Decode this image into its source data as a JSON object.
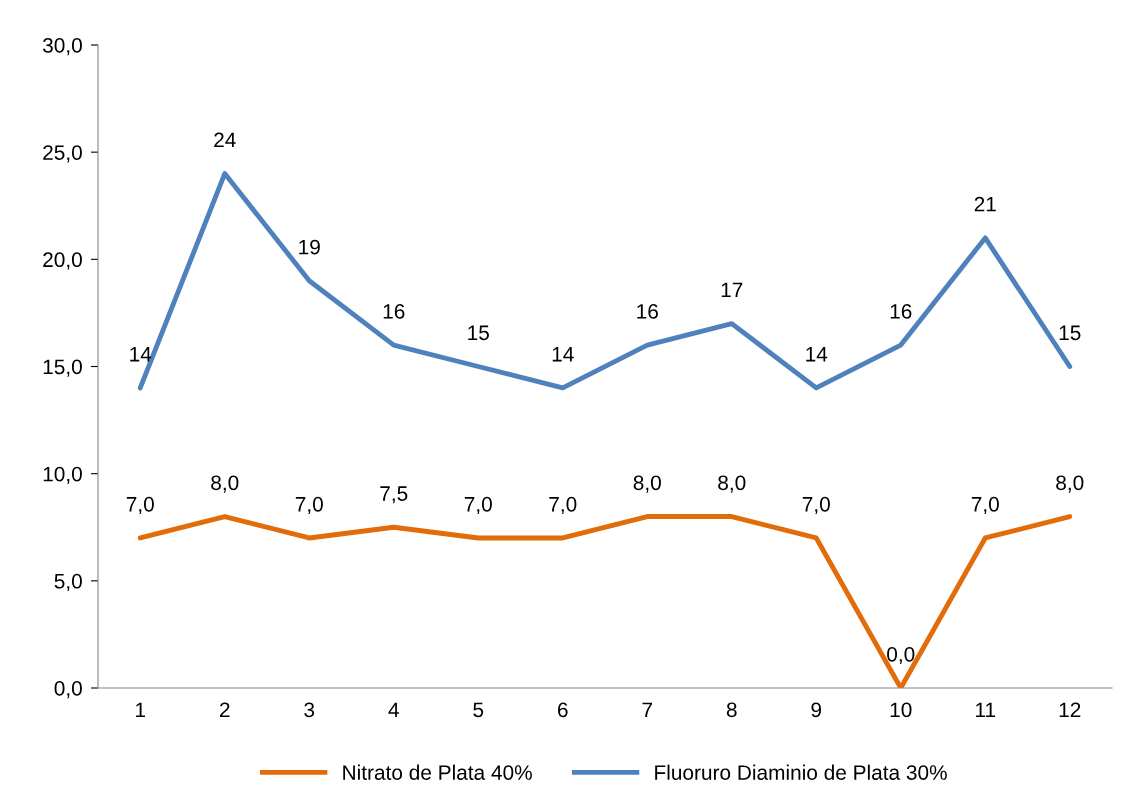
{
  "chart_data": {
    "type": "line",
    "categories": [
      "1",
      "2",
      "3",
      "4",
      "5",
      "6",
      "7",
      "8",
      "9",
      "10",
      "11",
      "12"
    ],
    "series": [
      {
        "name": "Nitrato de Plata 40%",
        "color": "#e36c0a",
        "values": [
          7.0,
          8.0,
          7.0,
          7.5,
          7.0,
          7.0,
          8.0,
          8.0,
          7.0,
          0.0,
          7.0,
          8.0
        ],
        "value_labels": [
          "7,0",
          "8,0",
          "7,0",
          "7,5",
          "7,0",
          "7,0",
          "8,0",
          "8,0",
          "7,0",
          "0,0",
          "7,0",
          "8,0"
        ]
      },
      {
        "name": "Fluoruro Diaminio de Plata 30%",
        "color": "#4f81bd",
        "values": [
          14,
          24,
          19,
          16,
          15,
          14,
          16,
          17,
          14,
          16,
          21,
          15
        ],
        "value_labels": [
          "14",
          "24",
          "19",
          "16",
          "15",
          "14",
          "16",
          "17",
          "14",
          "16",
          "21",
          "15"
        ]
      }
    ],
    "ylim": [
      0,
      30
    ],
    "yticks": [
      {
        "value": 0,
        "label": "0,0"
      },
      {
        "value": 5,
        "label": "5,0"
      },
      {
        "value": 10,
        "label": "10,0"
      },
      {
        "value": 15,
        "label": "15,0"
      },
      {
        "value": 20,
        "label": "20,0"
      },
      {
        "value": 25,
        "label": "25,0"
      },
      {
        "value": 30,
        "label": "30,0"
      }
    ],
    "grid": false,
    "legend": "bottom",
    "marker": "none",
    "line_style": "solid"
  }
}
